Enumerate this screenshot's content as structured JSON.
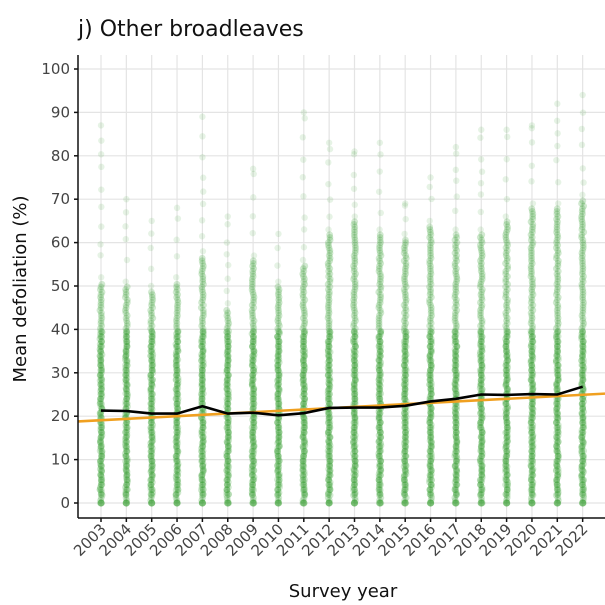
{
  "chart_data": {
    "type": "scatter",
    "title": "j) Other broadleaves",
    "xlabel": "Survey year",
    "ylabel": "Mean defoliation (%)",
    "ylim": [
      0,
      100
    ],
    "y_ticks": [
      0,
      10,
      20,
      30,
      40,
      50,
      60,
      70,
      80,
      90,
      100
    ],
    "categories": [
      "2003",
      "2004",
      "2005",
      "2006",
      "2007",
      "2008",
      "2009",
      "2010",
      "2011",
      "2012",
      "2013",
      "2014",
      "2015",
      "2016",
      "2017",
      "2018",
      "2019",
      "2020",
      "2021",
      "2022"
    ],
    "grid": true,
    "colors": {
      "points": "#2e9a27",
      "mean_line": "#000000",
      "trend_line": "#f0a020"
    },
    "series": [
      {
        "kind": "points",
        "max": [
          87,
          70,
          65,
          68,
          89,
          66,
          77,
          62,
          90,
          83,
          81,
          83,
          69,
          75,
          82,
          86,
          86,
          87,
          92,
          94
        ],
        "dense_max": [
          51,
          50,
          49,
          51,
          57,
          45,
          56,
          50,
          55,
          62,
          65,
          62,
          61,
          64,
          62,
          62,
          65,
          68,
          68,
          70
        ]
      },
      {
        "kind": "line",
        "values": [
          21.3,
          21.2,
          20.6,
          20.6,
          22.3,
          20.6,
          20.8,
          20.2,
          20.7,
          21.9,
          22.0,
          22.0,
          22.4,
          23.4,
          24.0,
          25.0,
          24.9,
          25.1,
          25.0,
          26.8
        ]
      },
      {
        "kind": "trend",
        "start": 18.8,
        "end": 25.2
      }
    ]
  }
}
